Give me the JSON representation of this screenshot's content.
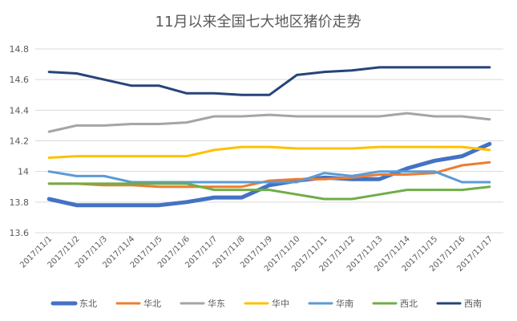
{
  "chart_data": {
    "type": "line",
    "title": "11月以来全国七大地区猪价走势",
    "xlabel": "",
    "ylabel": "",
    "ylim": [
      13.6,
      14.8
    ],
    "yticks": [
      "13.6",
      "13.8",
      "14",
      "14.2",
      "14.4",
      "14.6",
      "14.8"
    ],
    "ytick_values": [
      13.6,
      13.8,
      14.0,
      14.2,
      14.4,
      14.6,
      14.8
    ],
    "grid": true,
    "legend_position": "bottom",
    "categories": [
      "2017/11/1",
      "2017/11/2",
      "2017/11/3",
      "2017/11/4",
      "2017/11/5",
      "2017/11/6",
      "2017/11/7",
      "2017/11/8",
      "2017/11/9",
      "2017/11/10",
      "2017/11/11",
      "2017/11/12",
      "2017/11/13",
      "2017/11/14",
      "2017/11/15",
      "2017/11/16",
      "2017/11/17"
    ],
    "series": [
      {
        "name": "东北",
        "color": "#4472c4",
        "values": [
          13.82,
          13.78,
          13.78,
          13.78,
          13.78,
          13.8,
          13.83,
          13.83,
          13.91,
          13.94,
          13.96,
          13.95,
          13.95,
          14.02,
          14.07,
          14.1,
          14.18
        ]
      },
      {
        "name": "华北",
        "color": "#ed7d31",
        "values": [
          13.92,
          13.92,
          13.91,
          13.91,
          13.9,
          13.9,
          13.9,
          13.9,
          13.94,
          13.95,
          13.95,
          13.96,
          13.98,
          13.98,
          13.99,
          14.04,
          14.06
        ]
      },
      {
        "name": "华东",
        "color": "#a5a5a5",
        "values": [
          14.26,
          14.3,
          14.3,
          14.31,
          14.31,
          14.32,
          14.36,
          14.36,
          14.37,
          14.36,
          14.36,
          14.36,
          14.36,
          14.38,
          14.36,
          14.36,
          14.34
        ]
      },
      {
        "name": "华中",
        "color": "#ffc000",
        "values": [
          14.09,
          14.1,
          14.1,
          14.1,
          14.1,
          14.1,
          14.14,
          14.16,
          14.16,
          14.15,
          14.15,
          14.15,
          14.16,
          14.16,
          14.16,
          14.16,
          14.14
        ]
      },
      {
        "name": "华南",
        "color": "#5b9bd5",
        "values": [
          14.0,
          13.97,
          13.97,
          13.93,
          13.93,
          13.93,
          13.93,
          13.93,
          13.93,
          13.93,
          13.99,
          13.97,
          14.0,
          14.0,
          14.0,
          13.93,
          13.93
        ]
      },
      {
        "name": "西北",
        "color": "#70ad47",
        "values": [
          13.92,
          13.92,
          13.92,
          13.92,
          13.92,
          13.92,
          13.88,
          13.88,
          13.88,
          13.85,
          13.82,
          13.82,
          13.85,
          13.88,
          13.88,
          13.88,
          13.9
        ]
      },
      {
        "name": "西南",
        "color": "#264478",
        "values": [
          14.65,
          14.64,
          14.6,
          14.56,
          14.56,
          14.51,
          14.51,
          14.5,
          14.5,
          14.63,
          14.65,
          14.66,
          14.68,
          14.68,
          14.68,
          14.68,
          14.68
        ]
      }
    ]
  }
}
